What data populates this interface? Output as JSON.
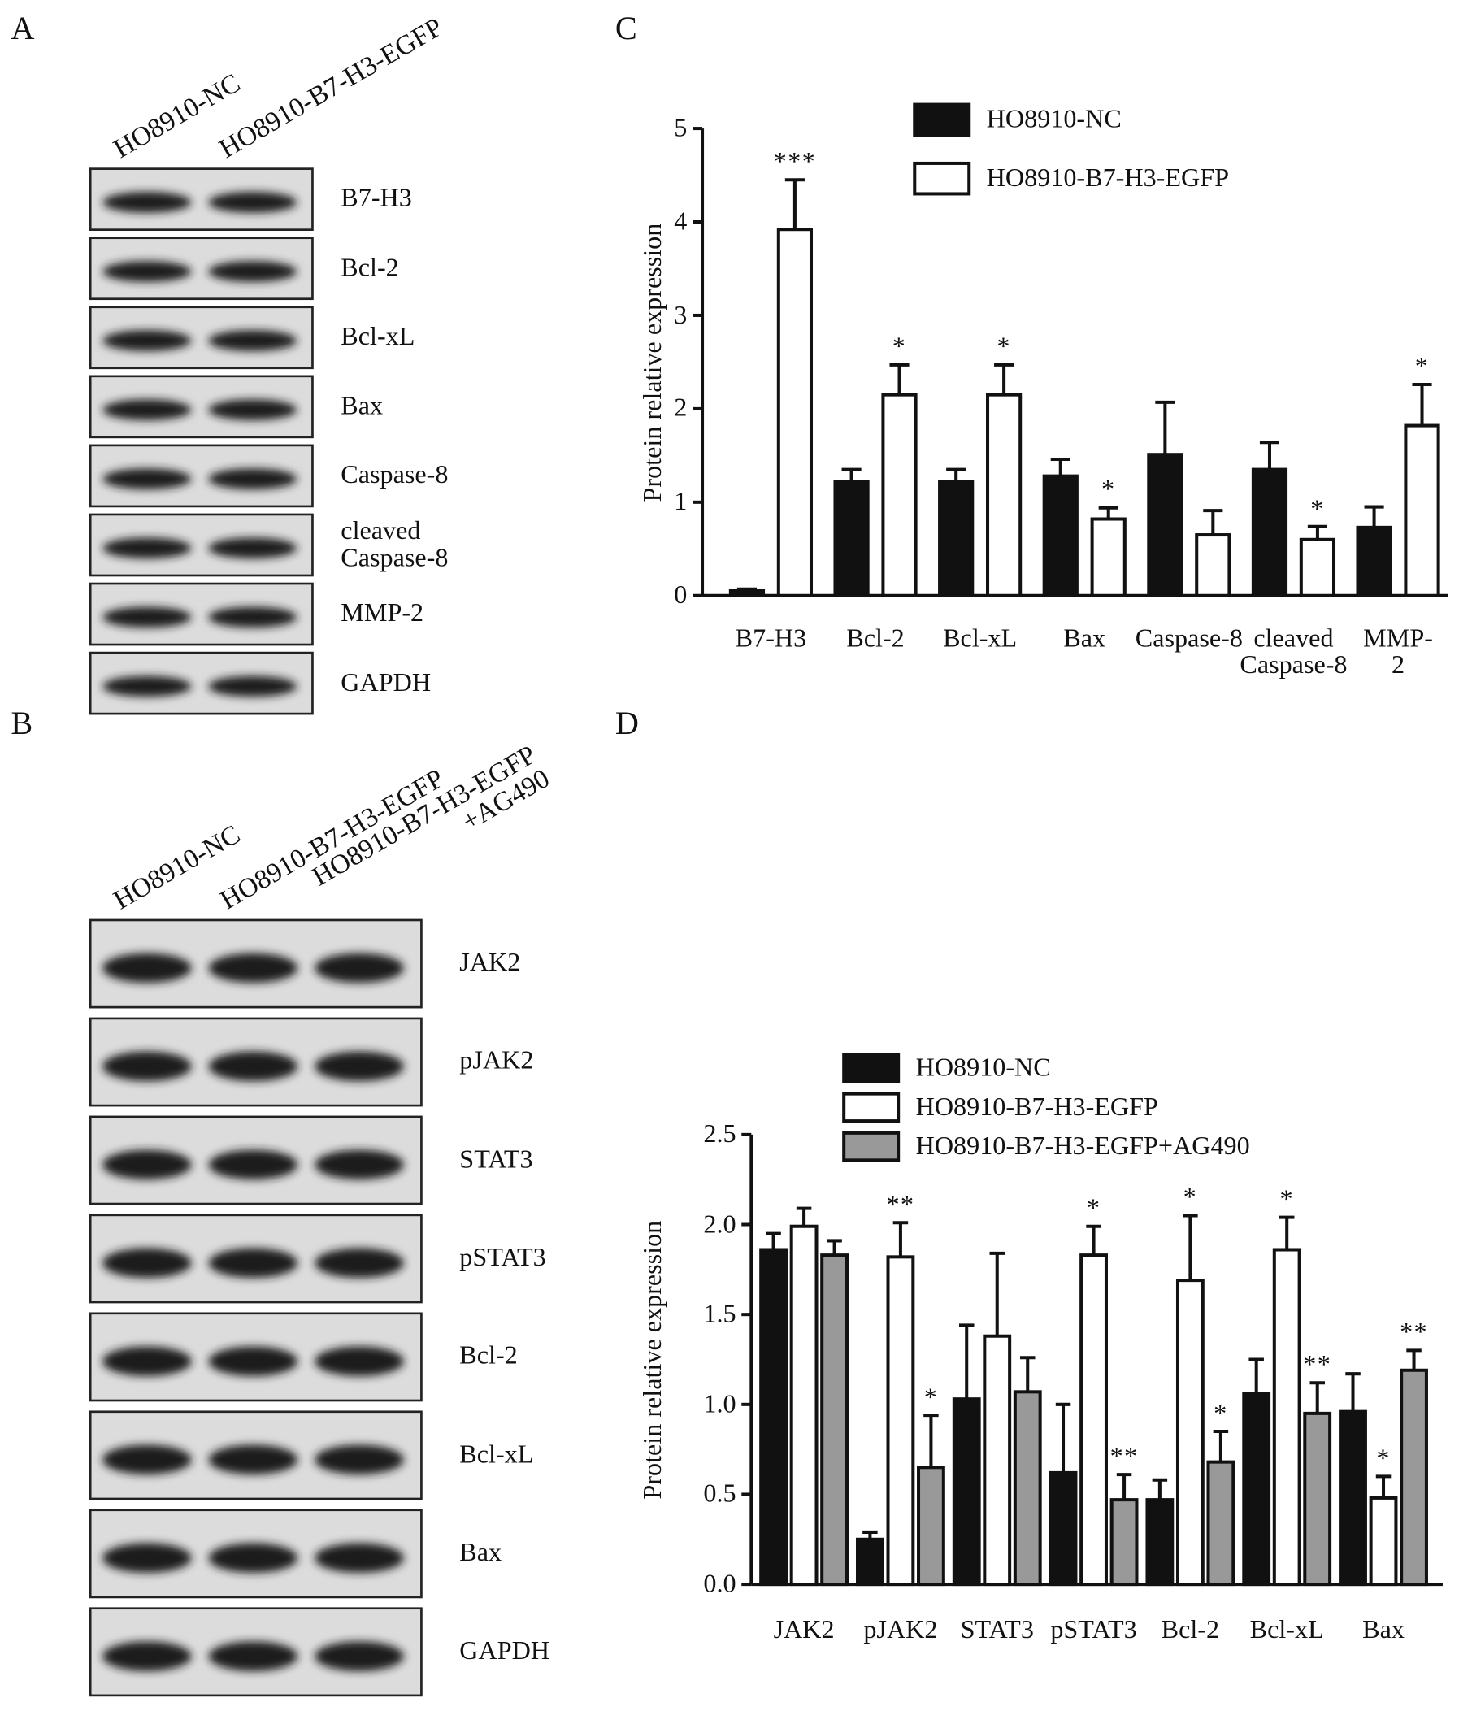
{
  "panel_labels": [
    "A",
    "B",
    "C",
    "D"
  ],
  "blots": [
    {
      "lanes": [
        "HO8910-NC",
        "HO8910-B7-H3-EGFP"
      ],
      "proteins": [
        "B7-H3",
        "Bcl-2",
        "Bcl-xL",
        "Bax",
        "Caspase-8",
        "cleaved\nCaspase-8",
        "MMP-2",
        "GAPDH"
      ]
    },
    {
      "lanes": [
        "HO8910-NC",
        "HO8910-B7-H3-EGFP",
        "HO8910-B7-H3-EGFP\n+AG490"
      ],
      "proteins": [
        "JAK2",
        "pJAK2",
        "STAT3",
        "pSTAT3",
        "Bcl-2",
        "Bcl-xL",
        "Bax",
        "GAPDH"
      ]
    }
  ],
  "chart_data": [
    {
      "type": "bar",
      "ylabel": "Protein relative expression",
      "categories": [
        "B7-H3",
        "Bcl-2",
        "Bcl-xL",
        "Bax",
        "Caspase-8",
        "cleaved\nCaspase-8",
        "MMP-2"
      ],
      "ylim": [
        0,
        5
      ],
      "yticks": [
        0,
        1,
        2,
        3,
        4,
        5
      ],
      "grid": false,
      "series": [
        {
          "name": "HO8910-NC",
          "color": "#111111",
          "values": [
            0.05,
            1.22,
            1.22,
            1.28,
            1.51,
            1.35,
            0.73
          ],
          "errors": [
            0.02,
            0.13,
            0.13,
            0.18,
            0.56,
            0.29,
            0.22
          ]
        },
        {
          "name": "HO8910-B7-H3-EGFP",
          "color": "#ffffff",
          "values": [
            3.92,
            2.15,
            2.15,
            0.82,
            0.65,
            0.6,
            1.82
          ],
          "errors": [
            0.53,
            0.32,
            0.32,
            0.12,
            0.26,
            0.14,
            0.44
          ],
          "annotations": [
            "***",
            "*",
            "*",
            "*",
            null,
            "*",
            "*"
          ]
        }
      ]
    },
    {
      "type": "bar",
      "ylabel": "Protein relative expression",
      "categories": [
        "JAK2",
        "pJAK2",
        "STAT3",
        "pSTAT3",
        "Bcl-2",
        "Bcl-xL",
        "Bax"
      ],
      "ylim": [
        0,
        2.5
      ],
      "yticks": [
        {
          "value": 0,
          "label": "0.0"
        },
        0.5,
        {
          "value": 1,
          "label": "1.0"
        },
        1.5,
        {
          "value": 2,
          "label": "2.0"
        },
        2.5
      ],
      "grid": false,
      "series": [
        {
          "name": "HO8910-NC",
          "color": "#111111",
          "values": [
            1.86,
            0.25,
            1.03,
            0.62,
            0.47,
            1.06,
            0.96
          ],
          "errors": [
            0.09,
            0.04,
            0.41,
            0.38,
            0.11,
            0.19,
            0.21
          ]
        },
        {
          "name": "HO8910-B7-H3-EGFP",
          "color": "#ffffff",
          "values": [
            1.99,
            1.82,
            1.38,
            1.83,
            1.69,
            1.86,
            0.48
          ],
          "errors": [
            0.1,
            0.19,
            0.46,
            0.16,
            0.36,
            0.18,
            0.12
          ],
          "annotations": [
            null,
            "**",
            null,
            "*",
            "*",
            "*",
            "*"
          ]
        },
        {
          "name": "HO8910-B7-H3-EGFP+AG490",
          "color": "#999999",
          "values": [
            1.83,
            0.65,
            1.07,
            0.47,
            0.68,
            0.95,
            1.19
          ],
          "errors": [
            0.08,
            0.29,
            0.19,
            0.14,
            0.17,
            0.17,
            0.11
          ],
          "annotations": [
            null,
            "*",
            null,
            "**",
            "*",
            "**",
            "**"
          ]
        }
      ]
    }
  ]
}
